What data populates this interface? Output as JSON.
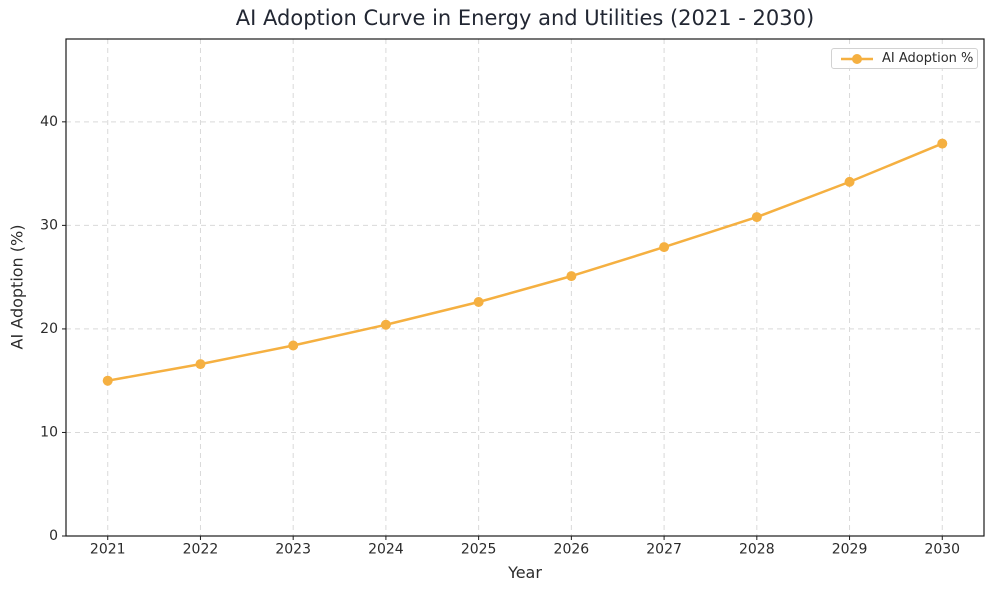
{
  "chart_data": {
    "type": "line",
    "title": "AI Adoption Curve in Energy and Utilities (2021 - 2030)",
    "xlabel": "Year",
    "ylabel": "AI Adoption (%)",
    "x": [
      2021,
      2022,
      2023,
      2024,
      2025,
      2026,
      2027,
      2028,
      2029,
      2030
    ],
    "series": [
      {
        "name": "AI Adoption %",
        "color": "#F5B041",
        "marker": "circle",
        "values": [
          15.0,
          16.6,
          18.4,
          20.4,
          22.6,
          25.1,
          27.9,
          30.8,
          34.2,
          37.9
        ]
      }
    ],
    "xticks": [
      2021,
      2022,
      2023,
      2024,
      2025,
      2026,
      2027,
      2028,
      2029,
      2030
    ],
    "yticks": [
      0,
      10,
      20,
      30,
      40
    ],
    "xlim": [
      2020.55,
      2030.45
    ],
    "ylim": [
      0,
      48
    ],
    "grid": true,
    "grid_style": "dashed",
    "legend_position": "upper right"
  }
}
